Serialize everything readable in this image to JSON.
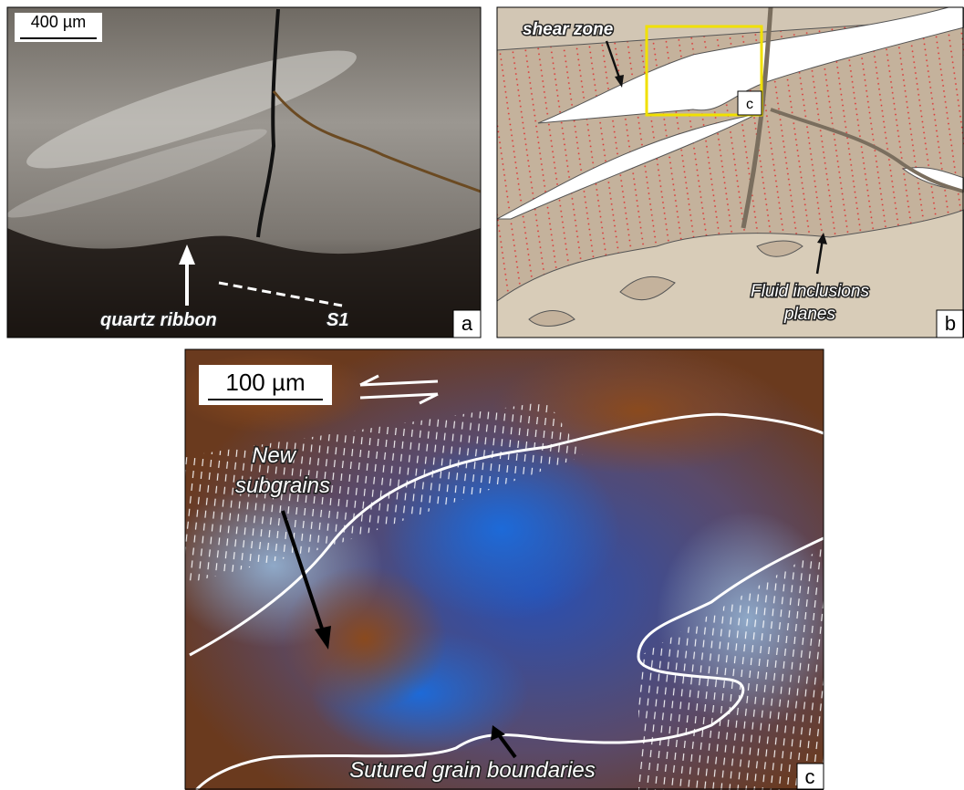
{
  "panels": [
    {
      "letter": "a",
      "scale_bar": "400 µm",
      "labels": [
        "quartz ribbon",
        "S1"
      ]
    },
    {
      "letter": "b",
      "labels": [
        "shear zone"
      ],
      "inset_letter": "c",
      "multiline_label": [
        "Fluid inclusions",
        "planes"
      ]
    },
    {
      "letter": "c",
      "scale_bar": "100 µm",
      "multiline_label": [
        "New",
        "subgrains"
      ],
      "labels": [
        "Sutured grain boundaries"
      ]
    }
  ]
}
